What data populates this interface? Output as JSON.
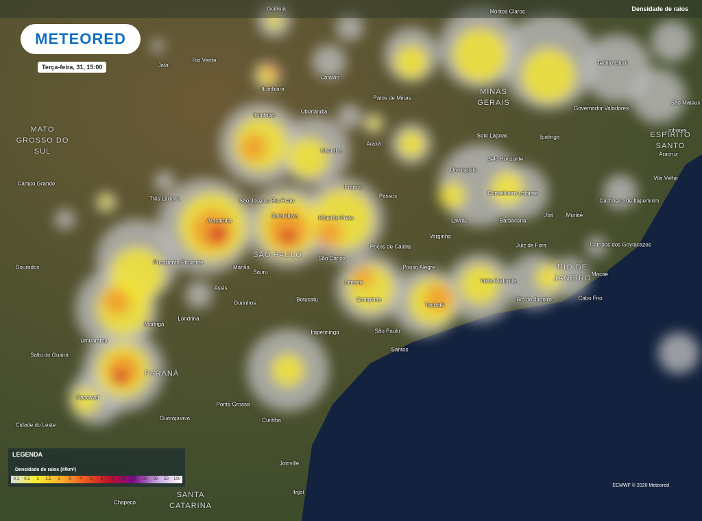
{
  "header": {
    "logo": "METEORED",
    "timestamp": "Terça-feira, 31, 15:00",
    "layer": "Densidade de raios"
  },
  "states": [
    "MATO GROSSO DO SUL",
    "MINAS GERAIS",
    "ESPÍRITO SANTO",
    "SÃO PAULO",
    "RIO DE JANEIRO",
    "PARANÁ",
    "SANTA CATARINA"
  ],
  "places": [
    "Goiânia",
    "Montes Claros",
    "Jataí",
    "Rio Verde",
    "Itumbiara",
    "Catalão",
    "Patos de Minas",
    "Teófilo Otoni",
    "Governador Valadares",
    "São Mateus",
    "Ituiutaba",
    "Uberlândia",
    "Sete Lagoas",
    "Linhares",
    "Ipatinga",
    "Uberaba",
    "Araxá",
    "Aracruz",
    "Belo Horizonte",
    "Divinópolis",
    "Campo Grande",
    "Franca",
    "Vila Velha",
    "Três Lagoas",
    "Passos",
    "Conselheiro Lafaiete",
    "Cachoeiro de Itapemirim",
    "São José do Rio Preto",
    "Catanduva",
    "Ribeirão Preto",
    "Ubá",
    "Muriaé",
    "Lavras",
    "Barbacena",
    "Araçatuba",
    "Varginha",
    "Poços de Caldas",
    "Juiz de Fora",
    "Campos dos Goytacazes",
    "São Carlos",
    "Presidente Prudente",
    "Marília",
    "Pouso Alegre",
    "Dourados",
    "Bauru",
    "Macaé",
    "Assis",
    "Volta Redonda",
    "Limeira",
    "Ourinhos",
    "Botucatu",
    "Campinas",
    "Rio de Janeiro",
    "Cabo Frio",
    "Taubaté",
    "Londrina",
    "Maringá",
    "Umuarama",
    "Itapetininga",
    "São Paulo",
    "Santos",
    "Salto do Guairá",
    "Cascavel",
    "Ponta Grossa",
    "Guarapuava",
    "Curitiba",
    "Cidade do Leste",
    "Joinville",
    "Itajaí",
    "Chapecó"
  ],
  "legend": {
    "title": "LEGENDA",
    "subtitle": "Densidade de raios (#/km²)",
    "labels": [
      "0.1",
      "0.5",
      "1",
      "1.5",
      "2",
      "3",
      "4",
      "5",
      "6",
      "8",
      "10",
      "15",
      "20",
      "30",
      "50",
      "100"
    ]
  },
  "credit": "ECMWF © 2020 Meteored"
}
